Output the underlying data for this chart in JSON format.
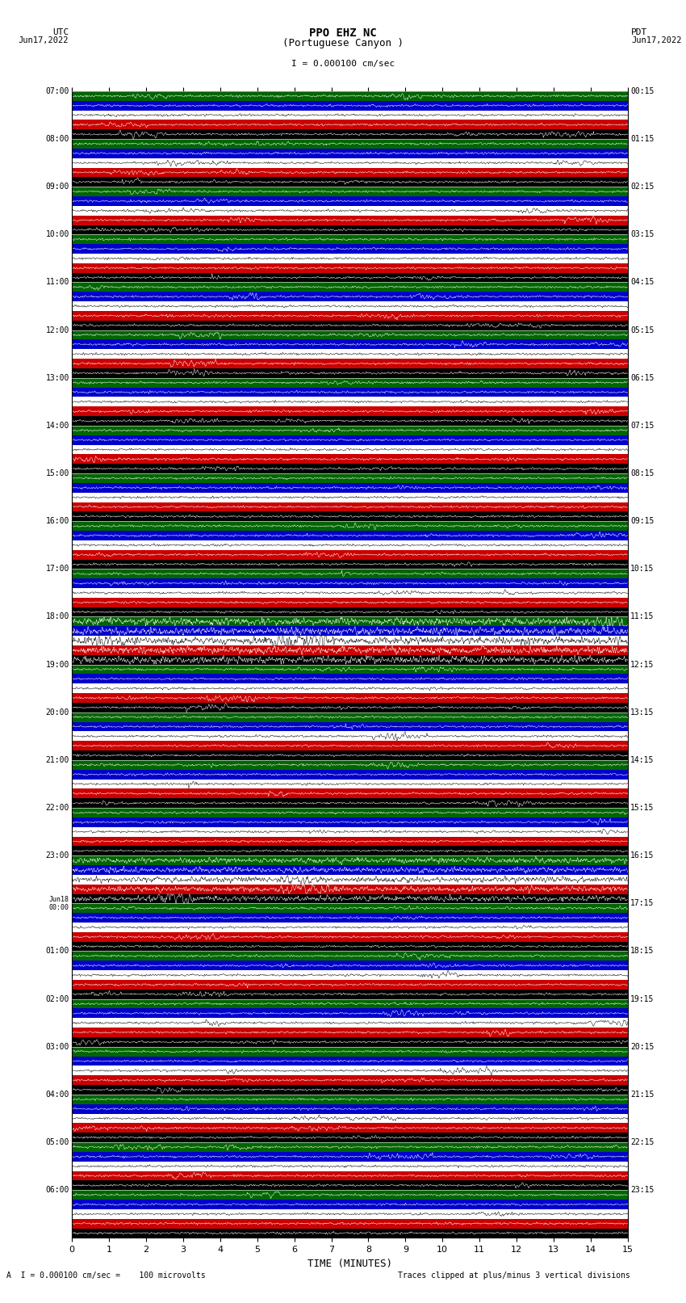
{
  "title_line1": "PPO EHZ NC",
  "title_line2": "(Portuguese Canyon )",
  "scale_text": "I = 0.000100 cm/sec",
  "utc_label": "UTC",
  "pdt_label": "PDT",
  "date_left": "Jun17,2022",
  "date_right": "Jun17,2022",
  "xlabel": "TIME (MINUTES)",
  "bottom_left": "A  I = 0.000100 cm/sec =    100 microvolts",
  "bottom_right": "Traces clipped at plus/minus 3 vertical divisions",
  "utc_times": [
    "07:00",
    "08:00",
    "09:00",
    "10:00",
    "11:00",
    "12:00",
    "13:00",
    "14:00",
    "15:00",
    "16:00",
    "17:00",
    "18:00",
    "19:00",
    "20:00",
    "21:00",
    "22:00",
    "23:00",
    "Jun18\n00:00",
    "01:00",
    "02:00",
    "03:00",
    "04:00",
    "05:00",
    "06:00"
  ],
  "pdt_times": [
    "00:15",
    "01:15",
    "02:15",
    "03:15",
    "04:15",
    "05:15",
    "06:15",
    "07:15",
    "08:15",
    "09:15",
    "10:15",
    "11:15",
    "12:15",
    "13:15",
    "14:15",
    "15:15",
    "16:15",
    "17:15",
    "18:15",
    "19:15",
    "20:15",
    "21:15",
    "22:15",
    "23:15"
  ],
  "n_rows": 24,
  "n_traces_per_row": 5,
  "band_colors": [
    "#000000",
    "#cc0000",
    "#ffffff",
    "#0000cc",
    "#006600"
  ],
  "xmin": 0,
  "xmax": 15,
  "xticks": [
    0,
    1,
    2,
    3,
    4,
    5,
    6,
    7,
    8,
    9,
    10,
    11,
    12,
    13,
    14,
    15
  ],
  "special_rows": {
    "11": 3.5,
    "16": 2.5
  },
  "special_band_rows": {
    "7": [
      4
    ],
    "16": [
      4
    ]
  }
}
